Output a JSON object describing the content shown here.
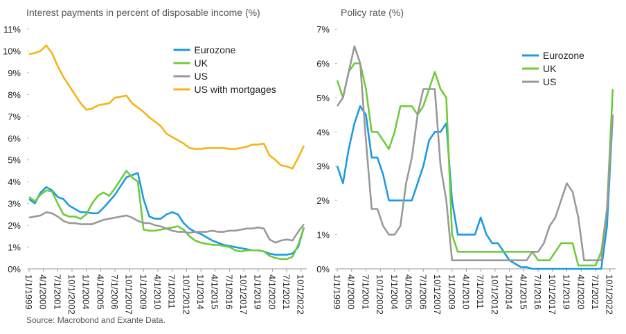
{
  "chart_data": [
    {
      "type": "line",
      "title": "Interest payments in percent of disposable income (%)",
      "legend": "upper center",
      "x": [
        1999,
        1999.5,
        2000,
        2000.5,
        2001,
        2001.5,
        2002,
        2002.5,
        2003,
        2003.5,
        2004,
        2004.5,
        2005,
        2005.5,
        2006,
        2006.5,
        2007,
        2007.5,
        2008,
        2008.5,
        2009,
        2009.5,
        2010,
        2010.5,
        2011,
        2011.5,
        2012,
        2012.5,
        2013,
        2013.5,
        2014,
        2014.5,
        2015,
        2015.5,
        2016,
        2016.5,
        2017,
        2017.5,
        2018,
        2018.5,
        2019,
        2019.5,
        2020,
        2020.5,
        2021,
        2021.5,
        2022,
        2022.5,
        2023
      ],
      "xlim": [
        1999,
        2023.25
      ],
      "xticks": [
        {
          "value": 1999,
          "label": "1/1/1999"
        },
        {
          "value": 2000.25,
          "label": "4/1/2000"
        },
        {
          "value": 2001.5,
          "label": "7/1/2001"
        },
        {
          "value": 2002.75,
          "label": "10/1/2002"
        },
        {
          "value": 2004,
          "label": "1/1/2004"
        },
        {
          "value": 2005.25,
          "label": "4/1/2005"
        },
        {
          "value": 2006.5,
          "label": "7/1/2006"
        },
        {
          "value": 2007.75,
          "label": "10/1/2007"
        },
        {
          "value": 2009,
          "label": "1/1/2009"
        },
        {
          "value": 2010.25,
          "label": "4/1/2010"
        },
        {
          "value": 2011.5,
          "label": "7/1/2011"
        },
        {
          "value": 2012.75,
          "label": "10/1/2012"
        },
        {
          "value": 2014,
          "label": "1/1/2014"
        },
        {
          "value": 2015.25,
          "label": "4/1/2015"
        },
        {
          "value": 2016.5,
          "label": "7/1/2016"
        },
        {
          "value": 2017.75,
          "label": "10/1/2017"
        },
        {
          "value": 2019,
          "label": "1/1/2019"
        },
        {
          "value": 2020.25,
          "label": "4/1/2020"
        },
        {
          "value": 2021.5,
          "label": "7/1/2021"
        },
        {
          "value": 2022.75,
          "label": "10/1/2022"
        }
      ],
      "ylim": [
        0,
        11
      ],
      "yticks": [
        {
          "value": 0,
          "label": "0%"
        },
        {
          "value": 1,
          "label": "1%"
        },
        {
          "value": 2,
          "label": "2%"
        },
        {
          "value": 3,
          "label": "3%"
        },
        {
          "value": 4,
          "label": "4%"
        },
        {
          "value": 5,
          "label": "5%"
        },
        {
          "value": 6,
          "label": "6%"
        },
        {
          "value": 7,
          "label": "7%"
        },
        {
          "value": 8,
          "label": "8%"
        },
        {
          "value": 9,
          "label": "9%"
        },
        {
          "value": 10,
          "label": "10%"
        },
        {
          "value": 11,
          "label": "11%"
        }
      ],
      "series": [
        {
          "name": "Eurozone",
          "color": "#1b9be0",
          "values": [
            3.2,
            3.0,
            3.5,
            3.75,
            3.6,
            3.3,
            3.2,
            2.9,
            2.75,
            2.6,
            2.6,
            2.55,
            2.55,
            2.8,
            3.1,
            3.4,
            3.8,
            4.2,
            4.3,
            4.4,
            3.2,
            2.4,
            2.3,
            2.3,
            2.5,
            2.6,
            2.5,
            2.1,
            1.85,
            1.7,
            1.6,
            1.45,
            1.3,
            1.2,
            1.1,
            1.05,
            1.0,
            0.95,
            0.9,
            0.85,
            0.85,
            0.8,
            0.7,
            0.65,
            0.65,
            0.65,
            0.7,
            1.0,
            1.9
          ]
        },
        {
          "name": "UK",
          "color": "#6ccc3a",
          "values": [
            3.3,
            3.1,
            3.4,
            3.6,
            3.55,
            3.0,
            2.5,
            2.4,
            2.4,
            2.3,
            2.5,
            3.0,
            3.35,
            3.5,
            3.35,
            3.7,
            4.1,
            4.5,
            4.2,
            4.0,
            1.8,
            1.75,
            1.75,
            1.8,
            1.85,
            1.9,
            1.95,
            1.8,
            1.5,
            1.3,
            1.2,
            1.15,
            1.1,
            1.1,
            1.05,
            1.0,
            0.85,
            0.8,
            0.85,
            0.85,
            0.85,
            0.8,
            0.6,
            0.5,
            0.45,
            0.45,
            0.55,
            1.1,
            1.9
          ]
        },
        {
          "name": "US",
          "color": "#999999",
          "values": [
            2.35,
            2.4,
            2.45,
            2.6,
            2.55,
            2.4,
            2.2,
            2.1,
            2.1,
            2.05,
            2.05,
            2.05,
            2.15,
            2.25,
            2.3,
            2.35,
            2.4,
            2.45,
            2.35,
            2.2,
            2.1,
            2.1,
            2.0,
            1.95,
            1.85,
            1.75,
            1.7,
            1.7,
            1.65,
            1.7,
            1.7,
            1.7,
            1.75,
            1.7,
            1.7,
            1.75,
            1.75,
            1.8,
            1.85,
            1.85,
            1.9,
            1.85,
            1.35,
            1.2,
            1.3,
            1.35,
            1.3,
            1.7,
            2.05
          ]
        },
        {
          "name": "US with mortgages",
          "color": "#f5b412",
          "values": [
            9.85,
            9.9,
            10.0,
            10.25,
            9.9,
            9.3,
            8.8,
            8.4,
            8.0,
            7.6,
            7.3,
            7.35,
            7.5,
            7.55,
            7.6,
            7.85,
            7.9,
            7.95,
            7.6,
            7.4,
            7.2,
            6.95,
            6.75,
            6.55,
            6.2,
            6.05,
            5.9,
            5.75,
            5.55,
            5.5,
            5.5,
            5.55,
            5.55,
            5.55,
            5.55,
            5.5,
            5.5,
            5.55,
            5.6,
            5.7,
            5.7,
            5.75,
            5.2,
            5.0,
            4.75,
            4.7,
            4.6,
            5.1,
            5.65
          ]
        }
      ]
    },
    {
      "type": "line",
      "title": "Policy rate (%)",
      "legend": "upper right",
      "x": [
        1999,
        1999.5,
        2000,
        2000.5,
        2001,
        2001.5,
        2002,
        2002.5,
        2003,
        2003.5,
        2004,
        2004.5,
        2005,
        2005.5,
        2006,
        2006.5,
        2007,
        2007.5,
        2008,
        2008.5,
        2009,
        2009.5,
        2010,
        2010.5,
        2011,
        2011.5,
        2012,
        2012.5,
        2013,
        2013.5,
        2014,
        2014.5,
        2015,
        2015.5,
        2016,
        2016.5,
        2017,
        2017.5,
        2018,
        2018.5,
        2019,
        2019.5,
        2020,
        2020.5,
        2021,
        2021.5,
        2022,
        2022.5,
        2023
      ],
      "xlim": [
        1999,
        2023.25
      ],
      "xticks": [
        {
          "value": 1999,
          "label": "1/1/1999"
        },
        {
          "value": 2000.25,
          "label": "4/1/2000"
        },
        {
          "value": 2001.5,
          "label": "7/1/2001"
        },
        {
          "value": 2002.75,
          "label": "10/1/2002"
        },
        {
          "value": 2004,
          "label": "1/1/2004"
        },
        {
          "value": 2005.25,
          "label": "4/1/2005"
        },
        {
          "value": 2006.5,
          "label": "7/1/2006"
        },
        {
          "value": 2007.75,
          "label": "10/1/2007"
        },
        {
          "value": 2009,
          "label": "1/1/2009"
        },
        {
          "value": 2010.25,
          "label": "4/1/2010"
        },
        {
          "value": 2011.5,
          "label": "7/1/2011"
        },
        {
          "value": 2012.75,
          "label": "10/1/2012"
        },
        {
          "value": 2014,
          "label": "1/1/2014"
        },
        {
          "value": 2015.25,
          "label": "4/1/2015"
        },
        {
          "value": 2016.5,
          "label": "7/1/2016"
        },
        {
          "value": 2017.75,
          "label": "10/1/2017"
        },
        {
          "value": 2019,
          "label": "1/1/2019"
        },
        {
          "value": 2020.25,
          "label": "4/1/2020"
        },
        {
          "value": 2021.5,
          "label": "7/1/2021"
        },
        {
          "value": 2022.75,
          "label": "10/1/2022"
        }
      ],
      "ylim": [
        0,
        7
      ],
      "yticks": [
        {
          "value": 0,
          "label": "0%"
        },
        {
          "value": 1,
          "label": "1%"
        },
        {
          "value": 2,
          "label": "2%"
        },
        {
          "value": 3,
          "label": "3%"
        },
        {
          "value": 4,
          "label": "4%"
        },
        {
          "value": 5,
          "label": "5%"
        },
        {
          "value": 6,
          "label": "6%"
        },
        {
          "value": 7,
          "label": "7%"
        }
      ],
      "series": [
        {
          "name": "Eurozone",
          "color": "#1b9be0",
          "values": [
            3.0,
            2.5,
            3.5,
            4.25,
            4.75,
            4.5,
            3.25,
            3.25,
            2.75,
            2.0,
            2.0,
            2.0,
            2.0,
            2.0,
            2.5,
            3.0,
            3.75,
            4.0,
            4.0,
            4.25,
            2.0,
            1.0,
            1.0,
            1.0,
            1.0,
            1.5,
            1.0,
            0.75,
            0.75,
            0.5,
            0.25,
            0.15,
            0.05,
            0.05,
            0,
            0,
            0,
            0,
            0,
            0,
            0,
            0,
            0,
            0,
            0,
            0,
            0,
            1.25,
            4.5
          ]
        },
        {
          "name": "UK",
          "color": "#6ccc3a",
          "values": [
            5.5,
            5.0,
            5.75,
            6.0,
            6.0,
            5.25,
            4.0,
            4.0,
            3.75,
            3.5,
            4.0,
            4.75,
            4.75,
            4.75,
            4.5,
            4.75,
            5.25,
            5.75,
            5.25,
            5.0,
            1.0,
            0.5,
            0.5,
            0.5,
            0.5,
            0.5,
            0.5,
            0.5,
            0.5,
            0.5,
            0.5,
            0.5,
            0.5,
            0.5,
            0.5,
            0.25,
            0.25,
            0.25,
            0.5,
            0.75,
            0.75,
            0.75,
            0.1,
            0.1,
            0.1,
            0.1,
            0.5,
            1.75,
            5.25
          ]
        },
        {
          "name": "US",
          "color": "#999999",
          "values": [
            4.75,
            5.0,
            5.75,
            6.5,
            6.0,
            3.75,
            1.75,
            1.75,
            1.25,
            1.0,
            1.0,
            1.25,
            2.5,
            3.25,
            4.5,
            5.25,
            5.25,
            5.25,
            3.0,
            2.0,
            0.25,
            0.25,
            0.25,
            0.25,
            0.25,
            0.25,
            0.25,
            0.25,
            0.25,
            0.25,
            0.25,
            0.25,
            0.25,
            0.25,
            0.5,
            0.5,
            0.75,
            1.25,
            1.5,
            2.0,
            2.5,
            2.25,
            1.5,
            0.25,
            0.25,
            0.25,
            0.25,
            1.75,
            4.5
          ]
        }
      ]
    }
  ],
  "source": "Source: Macrobond and Exante Data."
}
